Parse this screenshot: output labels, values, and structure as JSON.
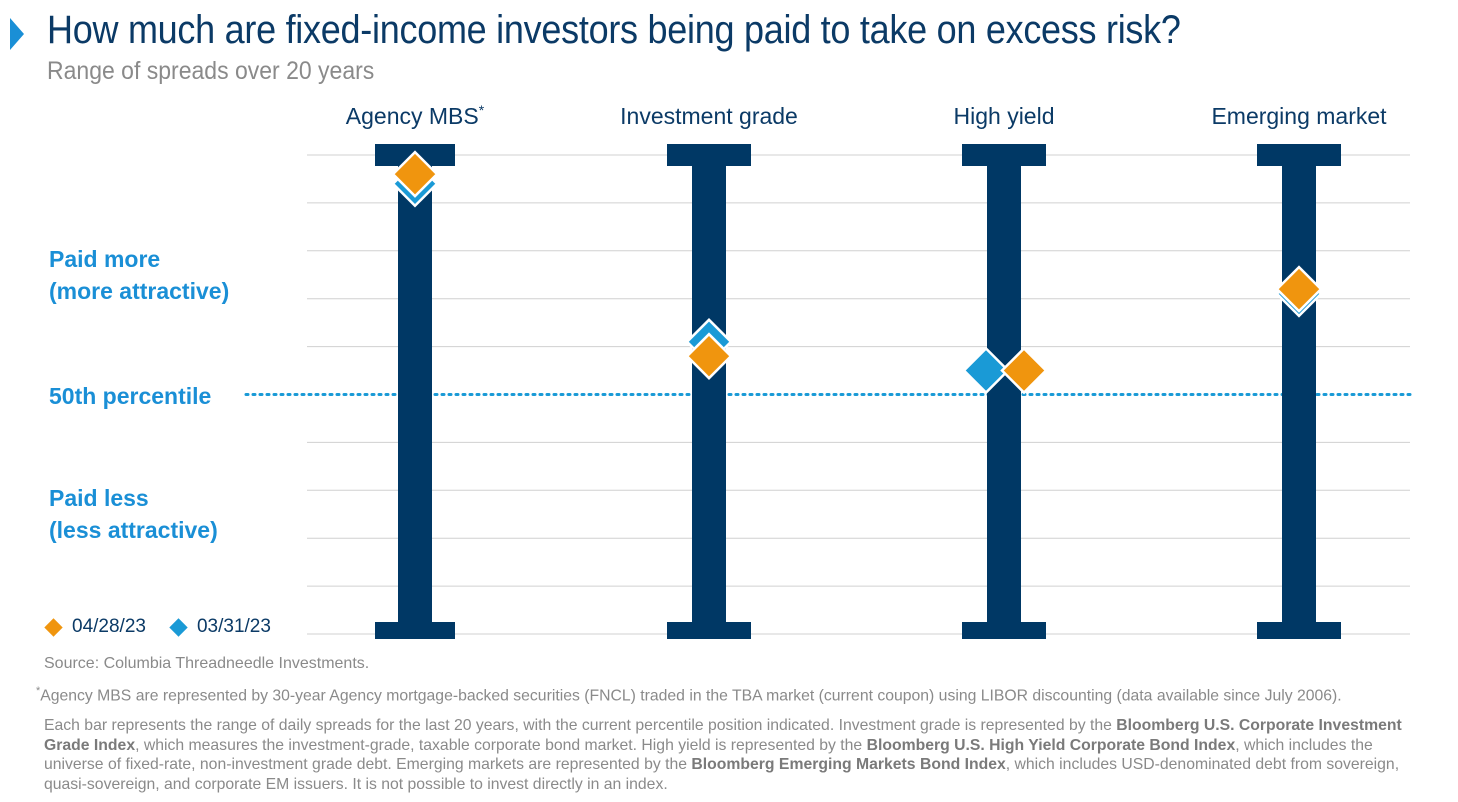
{
  "title": "How much are fixed-income investors being paid to take on excess risk?",
  "subtitle": "Range of spreads over 20 years",
  "side_labels": {
    "paid_more_1": "Paid more",
    "paid_more_2": "(more attractive)",
    "percentile_50": "50th percentile",
    "paid_less_1": "Paid less",
    "paid_less_2": "(less attractive)"
  },
  "colors": {
    "bar": "#003865",
    "current": "#f0950e",
    "prior": "#1a9ad6",
    "grid": "#d0d0d0",
    "median_line": "#1a9ad6"
  },
  "chart_data": {
    "type": "scatter",
    "categories": [
      "Agency MBS",
      "Investment grade",
      "High yield",
      "Emerging market"
    ],
    "category_superscripts": [
      "*",
      "",
      "",
      ""
    ],
    "y_axis": {
      "meaning": "percentile of 20-year spread range",
      "ylim": [
        0,
        100
      ],
      "median": 50
    },
    "series": [
      {
        "name": "04/28/23",
        "values": [
          96,
          58,
          55,
          72
        ]
      },
      {
        "name": "03/31/23",
        "values": [
          94,
          61,
          55,
          71
        ]
      }
    ],
    "grid": true,
    "legend_position": "bottom-left"
  },
  "footer": {
    "source": "Source: Columbia Threadneedle Investments.",
    "footnote_marker": "*",
    "footnote": "Agency MBS are represented by 30-year Agency mortgage-backed securities (FNCL) traded in the TBA market (current coupon) using LIBOR discounting (data available since July 2006).",
    "note_parts": [
      {
        "text": "Each bar represents the range of daily spreads for the last 20 years, with the current percentile position indicated. Investment grade is represented by the ",
        "bold": false
      },
      {
        "text": "Bloomberg U.S. Corporate Investment Grade Index",
        "bold": true
      },
      {
        "text": ", which measures the investment-grade, taxable corporate bond market. High yield is represented by the ",
        "bold": false
      },
      {
        "text": "Bloomberg U.S. High Yield Corporate Bond Index",
        "bold": true
      },
      {
        "text": ", which includes the universe of fixed-rate, non-investment grade debt. Emerging markets are represented by the ",
        "bold": false
      },
      {
        "text": "Bloomberg Emerging Markets Bond Index",
        "bold": true
      },
      {
        "text": ", which includes USD-denominated debt from sovereign, quasi-sovereign, and corporate EM issuers. It is not possible to invest directly in an index.",
        "bold": false
      }
    ]
  }
}
